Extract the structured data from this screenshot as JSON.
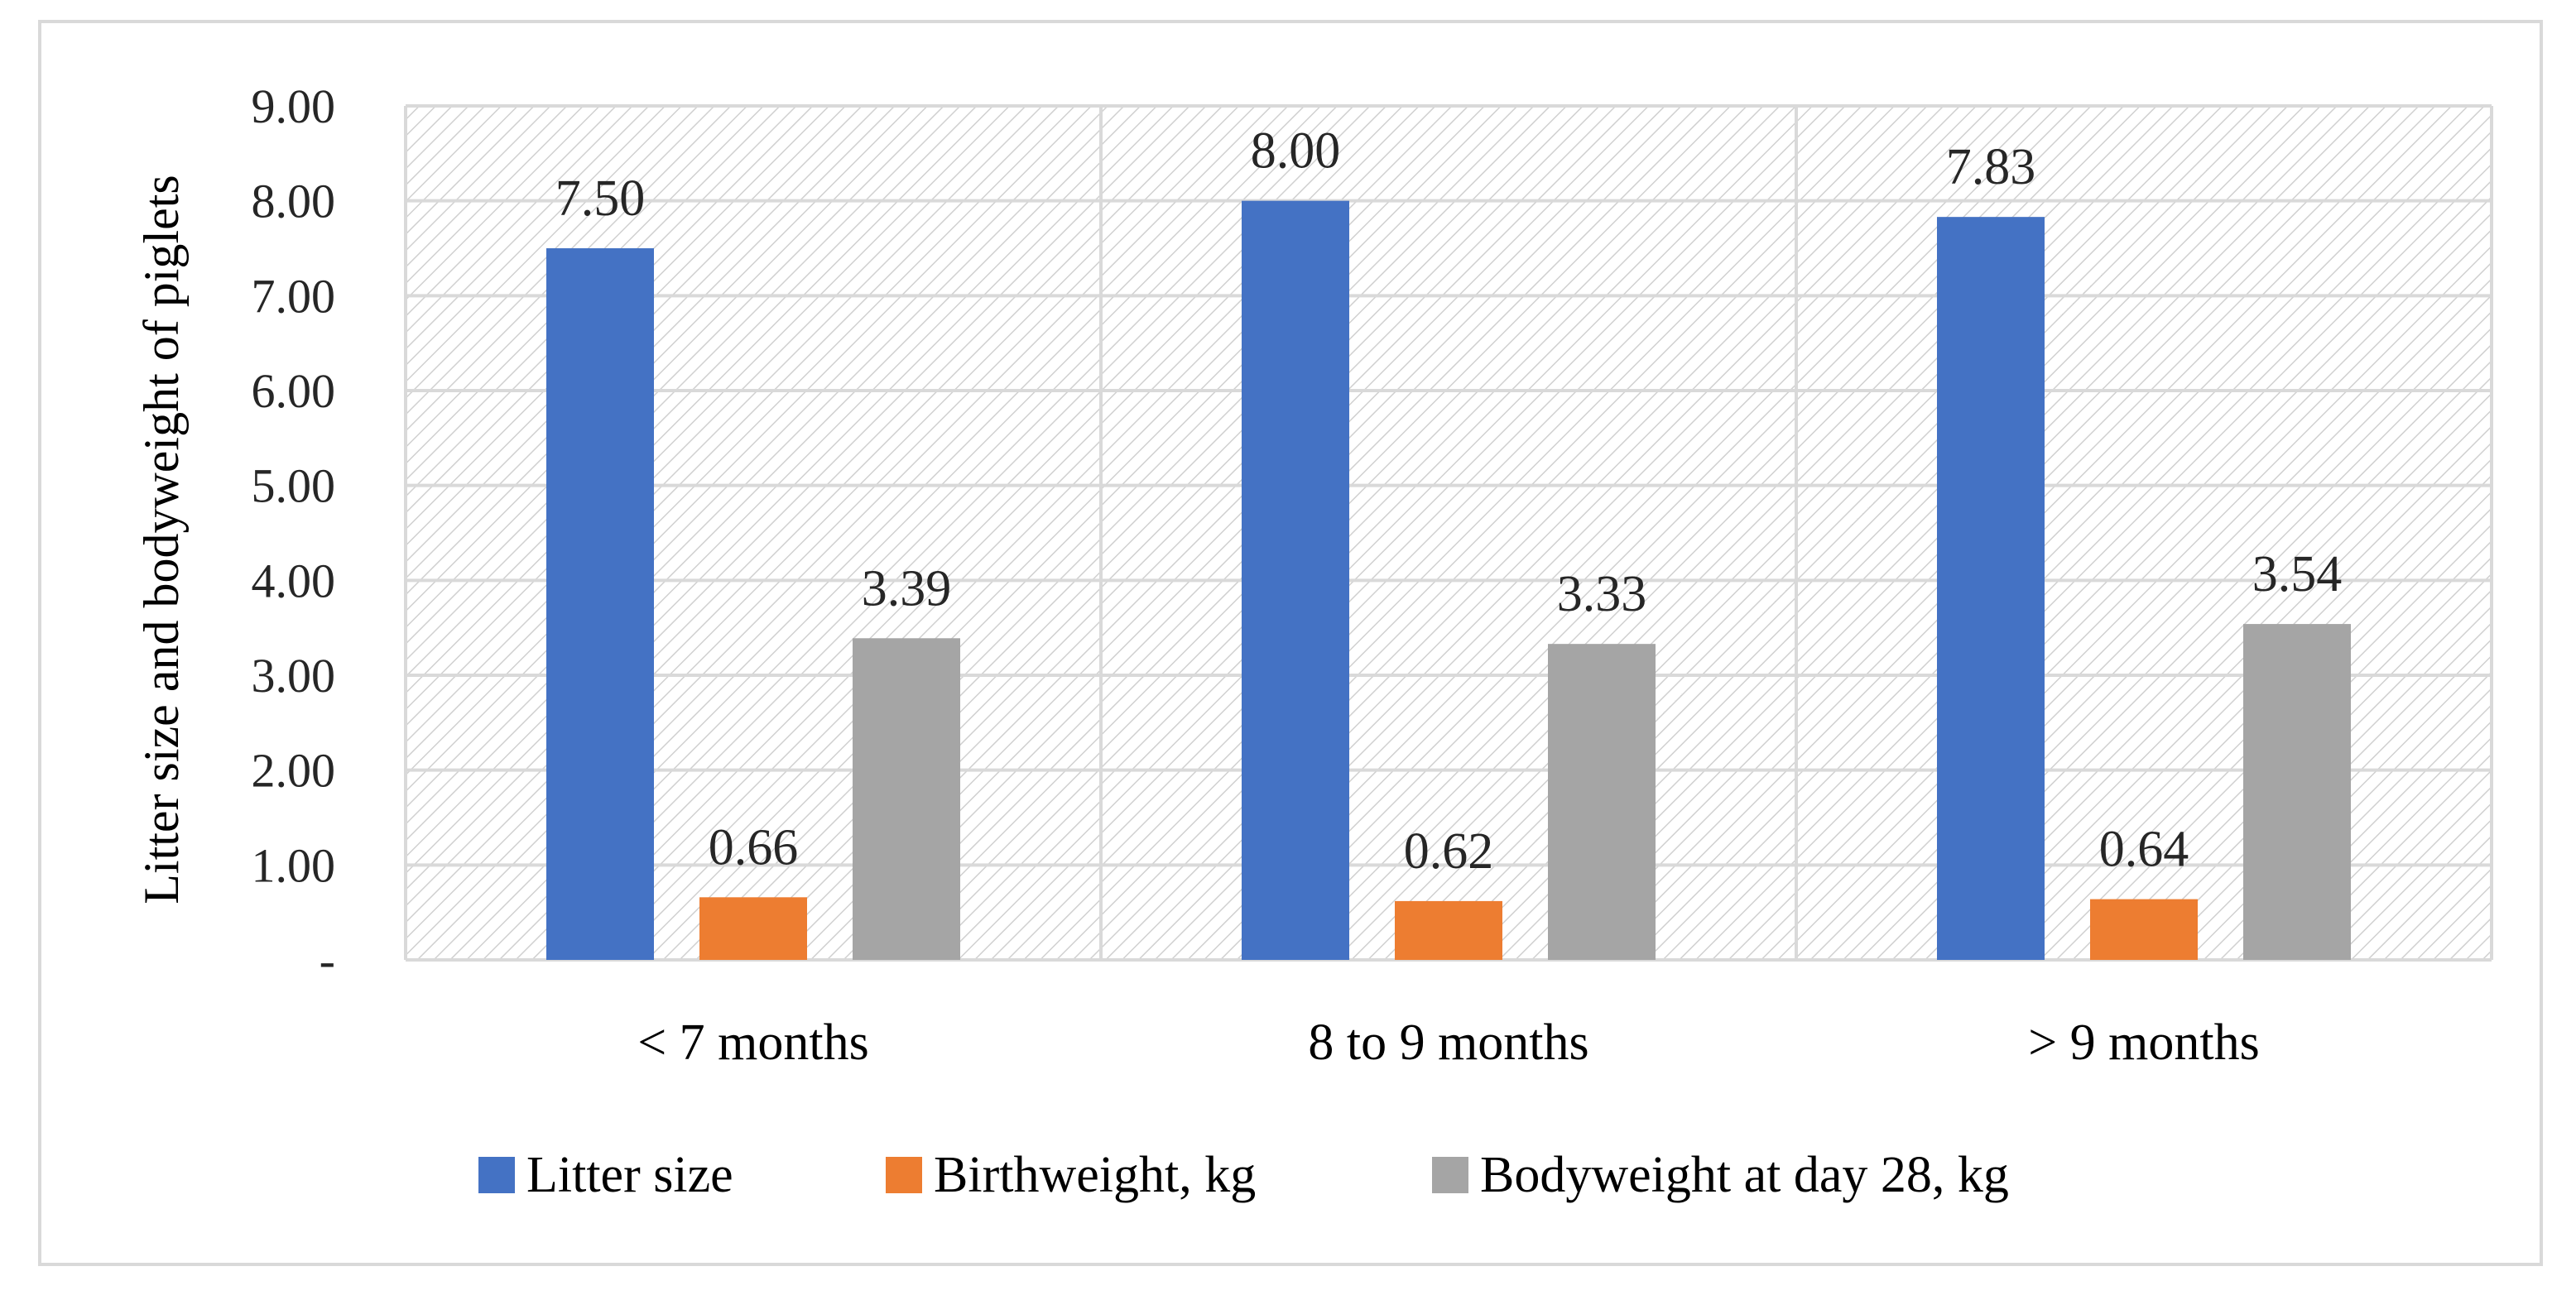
{
  "chart_data": {
    "type": "bar",
    "title": "",
    "xlabel": "",
    "ylabel": "Litter size and bodyweight of piglets",
    "categories": [
      "< 7 months",
      "8 to 9 months",
      "> 9 months"
    ],
    "series": [
      {
        "name": "Litter size",
        "color": "#4472c4",
        "values": [
          7.5,
          8.0,
          7.83
        ],
        "labels": [
          "7.50",
          "8.00",
          "7.83"
        ]
      },
      {
        "name": "Birthweight, kg",
        "color": "#ed7d31",
        "values": [
          0.66,
          0.62,
          0.64
        ],
        "labels": [
          "0.66",
          "0.62",
          "0.64"
        ]
      },
      {
        "name": "Bodyweight at day 28, kg",
        "color": "#a5a5a5",
        "values": [
          3.39,
          3.33,
          3.54
        ],
        "labels": [
          "3.39",
          "3.33",
          "3.54"
        ]
      }
    ],
    "ylim": [
      0,
      9
    ],
    "yticks": [
      0,
      1,
      2,
      3,
      4,
      5,
      6,
      7,
      8,
      9
    ],
    "ytick_labels": [
      "-",
      "1.00",
      "2.00",
      "3.00",
      "4.00",
      "5.00",
      "6.00",
      "7.00",
      "8.00",
      "9.00"
    ],
    "grid": true,
    "plot_background": "diagonal-hatch",
    "legend_position": "bottom"
  }
}
